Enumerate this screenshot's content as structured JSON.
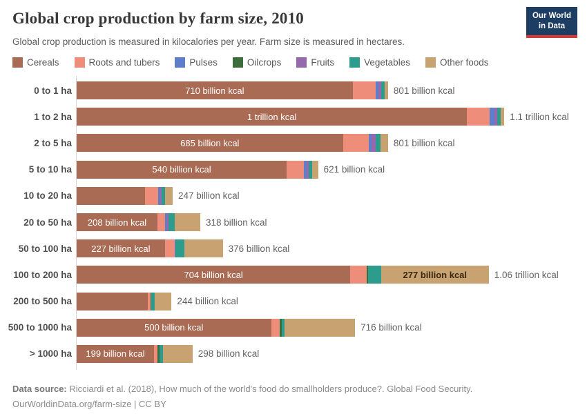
{
  "header": {
    "title": "Global crop production by farm size, 2010",
    "subtitle": "Global crop production is measured in kilocalories per year. Farm size is measured in hectares."
  },
  "logo": {
    "line1": "Our World",
    "line2": "in Data",
    "bg_color": "#1d3d63",
    "accent_color": "#dc3730"
  },
  "chart_data": {
    "type": "bar",
    "orientation": "horizontal",
    "stacked": true,
    "unit": "kilocalories per year (billions)",
    "legend_position": "top",
    "series_names": [
      "Cereals",
      "Roots and tubers",
      "Pulses",
      "Oilcrops",
      "Fruits",
      "Vegetables",
      "Other foods"
    ],
    "series_colors": [
      "#aa6b54",
      "#ee8d79",
      "#5f7ec9",
      "#3c6e3c",
      "#9668ae",
      "#2d9c8d",
      "#c9a272"
    ],
    "categories": [
      "0 to 1 ha",
      "1 to 2 ha",
      "2 to 5 ha",
      "5 to 10 ha",
      "10 to 20 ha",
      "20 to 50 ha",
      "50 to 100 ha",
      "100 to 200 ha",
      "200 to 500 ha",
      "500 to 1000 ha",
      "> 1000 ha"
    ],
    "rows": [
      {
        "category": "0 to 1 ha",
        "values": [
          710,
          59,
          7,
          0,
          7,
          9,
          9
        ],
        "total_value": 801,
        "bar_label": "710 billion kcal",
        "other_label": "",
        "total_label": "801 billion kcal"
      },
      {
        "category": "1 to 2 ha",
        "values": [
          1004,
          59,
          11,
          0,
          7,
          9,
          10
        ],
        "total_value": 1100,
        "bar_label": "1 trillion kcal",
        "other_label": "",
        "total_label": "1.1 trillion kcal"
      },
      {
        "category": "2 to 5 ha",
        "values": [
          685,
          66,
          8,
          0,
          11,
          12,
          19
        ],
        "total_value": 801,
        "bar_label": "685 billion kcal",
        "other_label": "",
        "total_label": "801 billion kcal"
      },
      {
        "category": "5 to 10 ha",
        "values": [
          540,
          44,
          7,
          0,
          5,
          10,
          15
        ],
        "total_value": 621,
        "bar_label": "540 billion kcal",
        "other_label": "",
        "total_label": "621 billion kcal"
      },
      {
        "category": "10 to 20 ha",
        "values": [
          176,
          34,
          5,
          0,
          4,
          8,
          20
        ],
        "total_value": 247,
        "bar_label": "",
        "other_label": "",
        "total_label": "247 billion kcal"
      },
      {
        "category": "20 to 50 ha",
        "values": [
          208,
          20,
          5,
          0,
          3,
          16,
          66
        ],
        "total_value": 318,
        "bar_label": "208 billion kcal",
        "other_label": "",
        "total_label": "318 billion kcal"
      },
      {
        "category": "50 to 100 ha",
        "values": [
          227,
          25,
          2,
          0,
          0,
          24,
          98
        ],
        "total_value": 376,
        "bar_label": "227 billion kcal",
        "other_label": "",
        "total_label": "376 billion kcal"
      },
      {
        "category": "100 to 200 ha",
        "values": [
          704,
          42,
          0,
          4,
          0,
          33,
          277
        ],
        "total_value": 1060,
        "bar_label": "704 billion kcal",
        "other_label": "277 billion kcal",
        "total_label": "1.06 trillion kcal"
      },
      {
        "category": "200 to 500 ha",
        "values": [
          183,
          7,
          0,
          2,
          0,
          8,
          44
        ],
        "total_value": 244,
        "bar_label": "",
        "other_label": "",
        "total_label": "244 billion kcal"
      },
      {
        "category": "500 to 1000 ha",
        "values": [
          500,
          23,
          0,
          4,
          0,
          8,
          181
        ],
        "total_value": 716,
        "bar_label": "500 billion kcal",
        "other_label": "",
        "total_label": "716 billion kcal"
      },
      {
        "category": "> 1000 ha",
        "values": [
          199,
          9,
          0,
          5,
          0,
          9,
          76
        ],
        "total_value": 298,
        "bar_label": "199 billion kcal",
        "other_label": "",
        "total_label": "298 billion kcal"
      }
    ]
  },
  "footer": {
    "source_label": "Data source:",
    "source_text": " Ricciardi et al. (2018), How much of the world's food do smallholders produce?. Global Food Security.",
    "license_line": "OurWorldinData.org/farm-size | CC BY"
  }
}
